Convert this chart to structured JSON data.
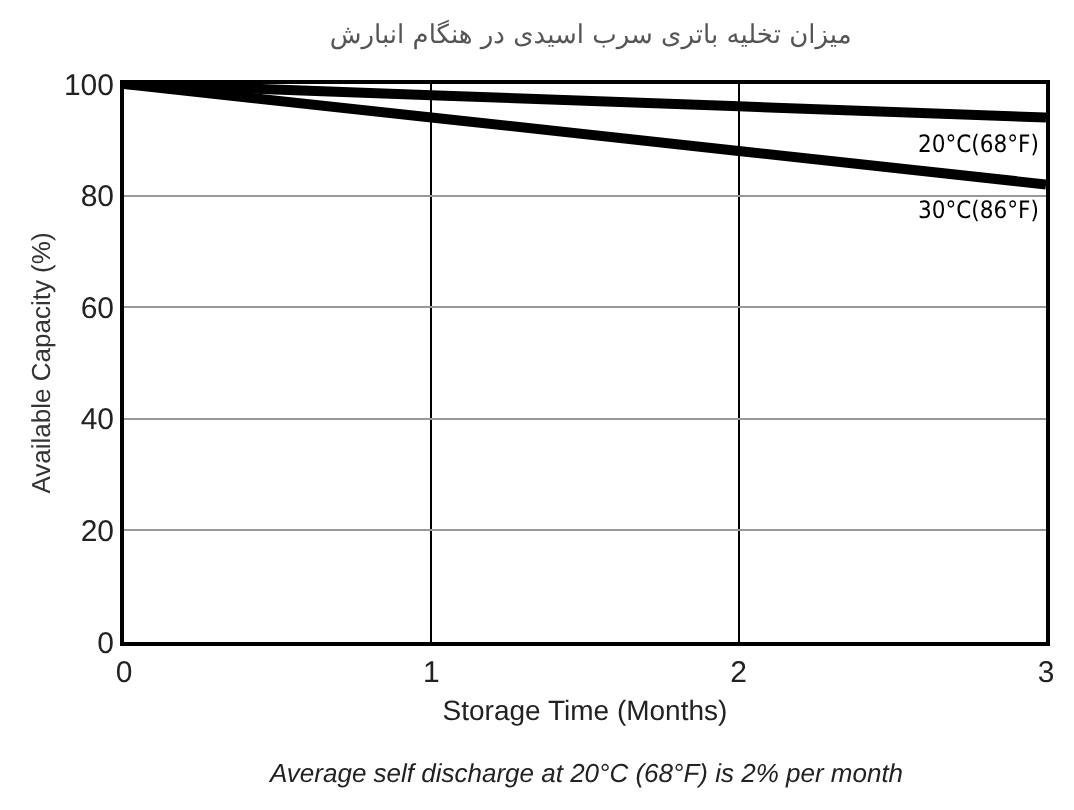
{
  "chart_data": {
    "type": "line",
    "title": "میزان تخلیه باتری سرب اسیدی در هنگام انبارش",
    "xlabel": "Storage Time (Months)",
    "ylabel": "Available Capacity (%)",
    "x": [
      0,
      1,
      2,
      3
    ],
    "series": [
      {
        "name": "20°C(68°F)",
        "color": "#000000",
        "values": [
          100,
          98,
          96,
          94
        ]
      },
      {
        "name": "30°C(86°F)",
        "color": "#000000",
        "values": [
          100,
          94,
          88,
          82
        ]
      }
    ],
    "xlim": [
      0,
      3
    ],
    "xticks": [
      0,
      1,
      2,
      3
    ],
    "ylim": [
      0,
      100
    ],
    "yticks": [
      0,
      20,
      40,
      60,
      80,
      100
    ],
    "grid": true,
    "legend": false,
    "marker": "none",
    "line_style": "solid",
    "annotations": [
      "Average self discharge at 20°C (68°F) is 2% per month"
    ]
  }
}
